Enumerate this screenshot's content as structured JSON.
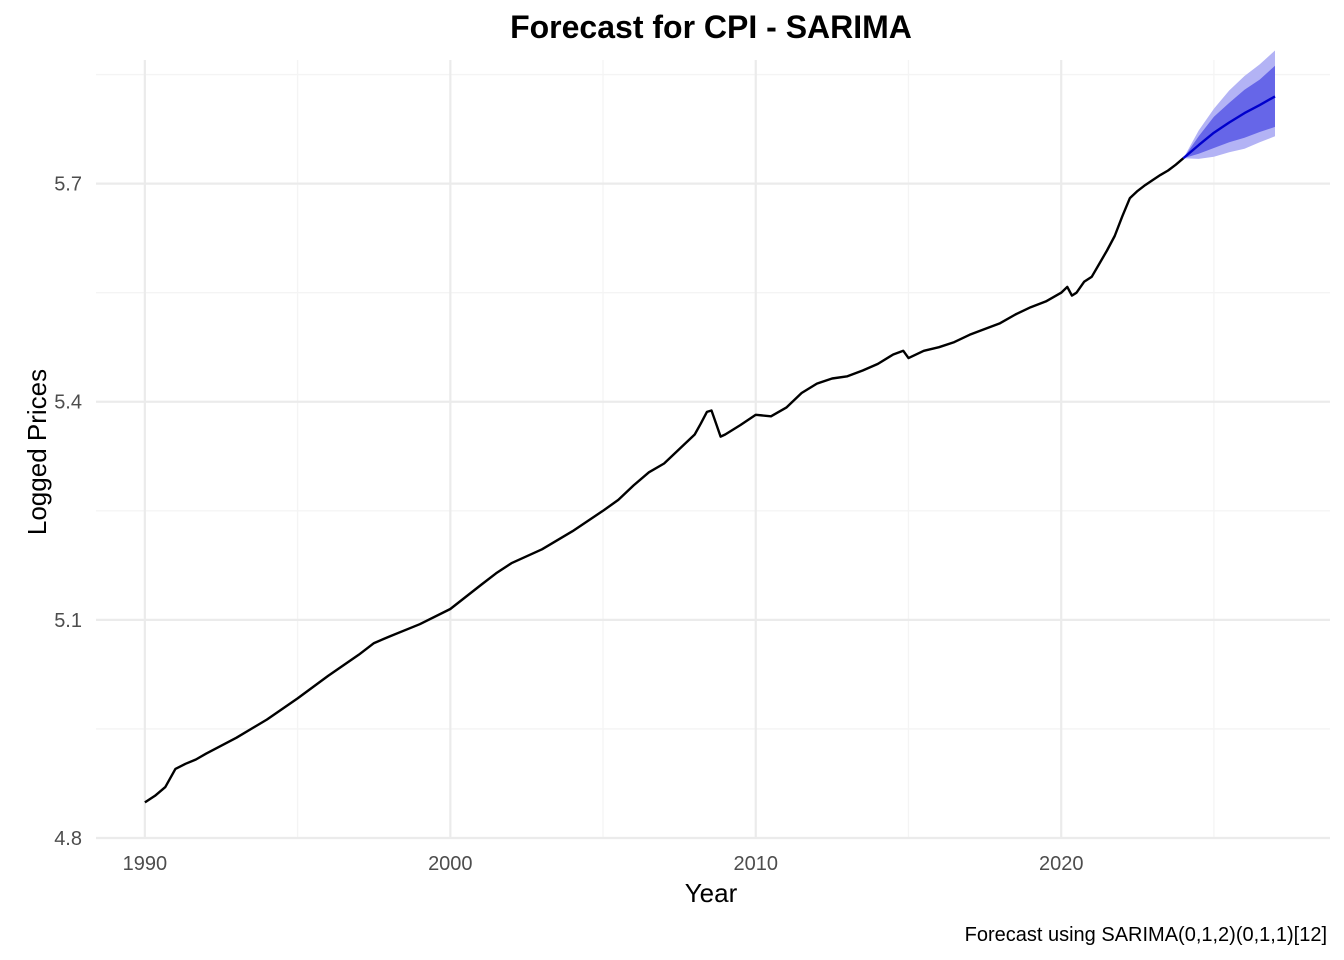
{
  "chart_data": {
    "type": "line",
    "title": "Forecast for CPI - SARIMA",
    "xlabel": "Year",
    "ylabel": "Logged Prices",
    "caption": "Forecast using SARIMA(0,1,2)(0,1,1)[12]",
    "xlim": [
      1988.4,
      2028.8
    ],
    "ylim": [
      4.8,
      5.87
    ],
    "x_ticks": [
      1990,
      2000,
      2010,
      2020
    ],
    "x_tick_labels": [
      "1990",
      "2000",
      "2010",
      "2020"
    ],
    "y_ticks": [
      4.8,
      5.1,
      5.4,
      5.7
    ],
    "y_tick_labels": [
      "4.8",
      "5.1",
      "5.4",
      "5.7"
    ],
    "grid": true,
    "legend": "none",
    "colors": {
      "history": "#000000",
      "forecast_line": "#0000cc",
      "band_95": "#b3b3f5",
      "band_80": "#6666e8",
      "grid_major": "#ebebeb",
      "grid_minor": "#f4f4f4"
    },
    "series": [
      {
        "role": "history",
        "x": [
          1990.0,
          1990.33,
          1990.67,
          1991.0,
          1991.33,
          1991.67,
          1992.0,
          1993.0,
          1994.0,
          1995.0,
          1996.0,
          1997.0,
          1997.5,
          1998.0,
          1999.0,
          2000.0,
          2001.0,
          2001.5,
          2002.0,
          2003.0,
          2004.0,
          2005.0,
          2005.5,
          2006.0,
          2006.5,
          2007.0,
          2007.5,
          2008.0,
          2008.2,
          2008.4,
          2008.55,
          2008.7,
          2008.85,
          2009.0,
          2009.5,
          2010.0,
          2010.5,
          2011.0,
          2011.5,
          2012.0,
          2012.5,
          2013.0,
          2013.5,
          2014.0,
          2014.5,
          2014.83,
          2015.0,
          2015.5,
          2016.0,
          2016.5,
          2017.0,
          2017.5,
          2018.0,
          2018.5,
          2019.0,
          2019.5,
          2020.0,
          2020.2,
          2020.35,
          2020.5,
          2020.75,
          2021.0,
          2021.25,
          2021.5,
          2021.75,
          2022.0,
          2022.25,
          2022.5,
          2022.75,
          2023.0,
          2023.25,
          2023.5,
          2023.75,
          2024.0
        ],
        "y": [
          4.849,
          4.858,
          4.87,
          4.895,
          4.902,
          4.908,
          4.916,
          4.938,
          4.963,
          4.992,
          5.023,
          5.052,
          5.068,
          5.077,
          5.094,
          5.115,
          5.148,
          5.164,
          5.178,
          5.197,
          5.222,
          5.25,
          5.265,
          5.285,
          5.303,
          5.315,
          5.335,
          5.355,
          5.37,
          5.386,
          5.388,
          5.37,
          5.352,
          5.355,
          5.368,
          5.382,
          5.38,
          5.392,
          5.412,
          5.425,
          5.432,
          5.435,
          5.443,
          5.452,
          5.465,
          5.47,
          5.46,
          5.47,
          5.475,
          5.482,
          5.492,
          5.5,
          5.508,
          5.52,
          5.53,
          5.538,
          5.55,
          5.558,
          5.546,
          5.55,
          5.565,
          5.572,
          5.59,
          5.608,
          5.628,
          5.655,
          5.68,
          5.69,
          5.698,
          5.705,
          5.712,
          5.718,
          5.726,
          5.735
        ]
      },
      {
        "role": "forecast",
        "x": [
          2024.0,
          2024.5,
          2025.0,
          2025.5,
          2026.0,
          2026.5,
          2027.0
        ],
        "y": [
          5.735,
          5.753,
          5.77,
          5.784,
          5.797,
          5.808,
          5.82
        ],
        "lo80": [
          5.735,
          5.741,
          5.749,
          5.757,
          5.763,
          5.771,
          5.778
        ],
        "hi80": [
          5.735,
          5.765,
          5.792,
          5.811,
          5.829,
          5.843,
          5.862
        ],
        "lo95": [
          5.735,
          5.734,
          5.737,
          5.743,
          5.748,
          5.757,
          5.765
        ],
        "hi95": [
          5.735,
          5.773,
          5.803,
          5.828,
          5.848,
          5.864,
          5.883
        ]
      }
    ]
  }
}
